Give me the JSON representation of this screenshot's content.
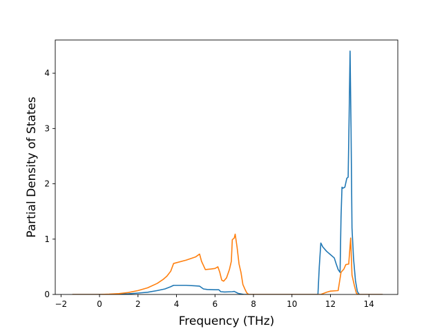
{
  "chart_data": {
    "type": "line",
    "title": "",
    "xlabel": "Frequency (THz)",
    "ylabel": "Partial Density of States",
    "xlim": [
      -2.3,
      15.5
    ],
    "ylim": [
      0,
      4.6
    ],
    "xticks": [
      -2,
      0,
      2,
      4,
      6,
      8,
      10,
      12,
      14
    ],
    "yticks": [
      0,
      1,
      2,
      3,
      4
    ],
    "grid": false,
    "legend": "none",
    "series": [
      {
        "color": "#1f77b4",
        "points": [
          [
            -1.4,
            0
          ],
          [
            0.0,
            0
          ],
          [
            0.6,
            0.002
          ],
          [
            1.0,
            0.005
          ],
          [
            1.5,
            0.012
          ],
          [
            2.0,
            0.025
          ],
          [
            2.5,
            0.04
          ],
          [
            3.0,
            0.07
          ],
          [
            3.4,
            0.1
          ],
          [
            3.7,
            0.14
          ],
          [
            3.85,
            0.165
          ],
          [
            4.5,
            0.165
          ],
          [
            5.0,
            0.155
          ],
          [
            5.2,
            0.15
          ],
          [
            5.4,
            0.1
          ],
          [
            5.6,
            0.09
          ],
          [
            6.0,
            0.085
          ],
          [
            6.2,
            0.085
          ],
          [
            6.3,
            0.05
          ],
          [
            6.5,
            0.045
          ],
          [
            6.9,
            0.05
          ],
          [
            7.0,
            0.055
          ],
          [
            7.2,
            0.02
          ],
          [
            7.5,
            0
          ],
          [
            11.35,
            0
          ],
          [
            11.42,
            0.5
          ],
          [
            11.5,
            0.93
          ],
          [
            11.6,
            0.86
          ],
          [
            11.8,
            0.78
          ],
          [
            12.0,
            0.72
          ],
          [
            12.2,
            0.66
          ],
          [
            12.3,
            0.55
          ],
          [
            12.4,
            0.45
          ],
          [
            12.5,
            0.4
          ],
          [
            12.55,
            1.4
          ],
          [
            12.6,
            1.94
          ],
          [
            12.65,
            1.92
          ],
          [
            12.75,
            1.94
          ],
          [
            12.85,
            2.1
          ],
          [
            12.92,
            2.12
          ],
          [
            12.97,
            3.2
          ],
          [
            13.02,
            4.4
          ],
          [
            13.07,
            3.0
          ],
          [
            13.12,
            1.2
          ],
          [
            13.2,
            0.65
          ],
          [
            13.3,
            0.25
          ],
          [
            13.4,
            0.05
          ],
          [
            13.5,
            0
          ],
          [
            14.7,
            0
          ]
        ]
      },
      {
        "color": "#ff7f0e",
        "points": [
          [
            -1.4,
            0
          ],
          [
            0.0,
            0
          ],
          [
            0.5,
            0.005
          ],
          [
            1.0,
            0.015
          ],
          [
            1.5,
            0.035
          ],
          [
            2.0,
            0.07
          ],
          [
            2.5,
            0.12
          ],
          [
            3.0,
            0.2
          ],
          [
            3.3,
            0.27
          ],
          [
            3.5,
            0.33
          ],
          [
            3.7,
            0.42
          ],
          [
            3.85,
            0.56
          ],
          [
            4.5,
            0.62
          ],
          [
            5.0,
            0.68
          ],
          [
            5.2,
            0.73
          ],
          [
            5.3,
            0.6
          ],
          [
            5.5,
            0.45
          ],
          [
            5.8,
            0.46
          ],
          [
            6.0,
            0.47
          ],
          [
            6.15,
            0.5
          ],
          [
            6.25,
            0.4
          ],
          [
            6.35,
            0.26
          ],
          [
            6.45,
            0.24
          ],
          [
            6.6,
            0.3
          ],
          [
            6.75,
            0.45
          ],
          [
            6.85,
            0.6
          ],
          [
            6.9,
            0.99
          ],
          [
            7.0,
            1.02
          ],
          [
            7.05,
            1.09
          ],
          [
            7.15,
            0.85
          ],
          [
            7.25,
            0.55
          ],
          [
            7.35,
            0.4
          ],
          [
            7.45,
            0.18
          ],
          [
            7.55,
            0.1
          ],
          [
            7.65,
            0.03
          ],
          [
            7.75,
            0
          ],
          [
            11.5,
            0
          ],
          [
            11.8,
            0.04
          ],
          [
            12.0,
            0.06
          ],
          [
            12.4,
            0.07
          ],
          [
            12.55,
            0.4
          ],
          [
            12.7,
            0.46
          ],
          [
            12.8,
            0.54
          ],
          [
            12.95,
            0.55
          ],
          [
            13.05,
            1.02
          ],
          [
            13.12,
            0.35
          ],
          [
            13.25,
            0.15
          ],
          [
            13.35,
            0.02
          ],
          [
            13.45,
            0
          ],
          [
            14.7,
            0
          ]
        ]
      }
    ]
  }
}
